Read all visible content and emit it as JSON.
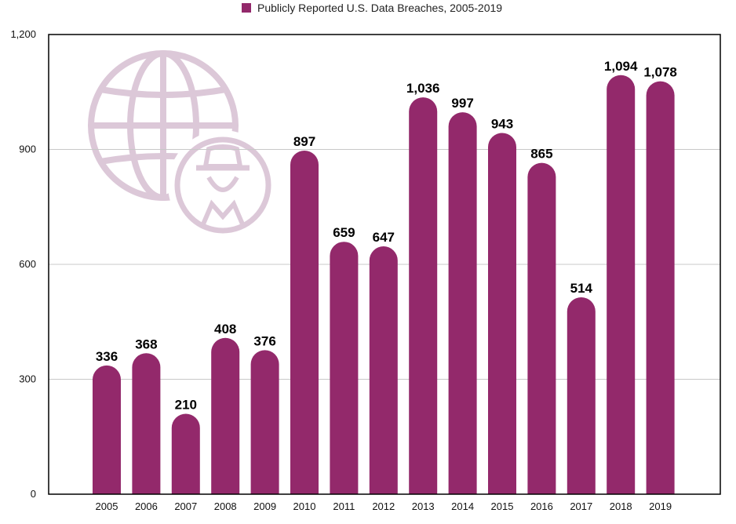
{
  "chart_data": {
    "type": "bar",
    "title": "",
    "xlabel": "",
    "ylabel": "",
    "legend": {
      "position": "top-center",
      "entries": [
        "Publicly Reported U.S. Data Breaches, 2005-2019"
      ]
    },
    "categories": [
      "2005",
      "2006",
      "2007",
      "2008",
      "2009",
      "2010",
      "2011",
      "2012",
      "2013",
      "2014",
      "2015",
      "2016",
      "2017",
      "2018",
      "2019"
    ],
    "series": [
      {
        "name": "Publicly Reported U.S. Data Breaches, 2005-2019",
        "values": [
          336,
          368,
          210,
          408,
          376,
          897,
          659,
          647,
          1036,
          997,
          943,
          865,
          514,
          1094,
          1078
        ],
        "labels": [
          "336",
          "368",
          "210",
          "408",
          "376",
          "897",
          "659",
          "647",
          "1,036",
          "997",
          "943",
          "865",
          "514",
          "1,094",
          "1,078"
        ]
      }
    ],
    "ylim": [
      0,
      1200
    ],
    "yticks": [
      0,
      300,
      600,
      900,
      1200
    ],
    "ytick_labels": [
      "0",
      "300",
      "600",
      "900",
      "1,200"
    ],
    "grid": true,
    "colors": {
      "bar": "#93296b",
      "grid": "#c8c8c8",
      "axis": "#000000",
      "watermark": "#dcc8d8"
    },
    "decoration": {
      "icon": "globe-spy-icon"
    }
  }
}
